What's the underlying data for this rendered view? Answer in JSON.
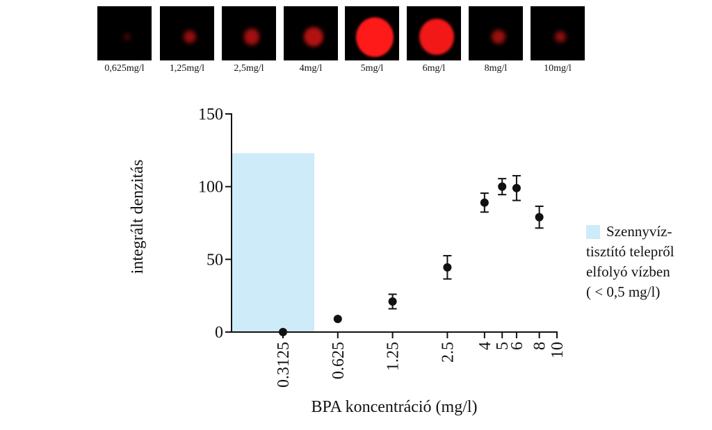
{
  "panels": [
    {
      "label": "0,625mg/l",
      "intensity": 0.05
    },
    {
      "label": "1,25mg/l",
      "intensity": 0.25
    },
    {
      "label": "2,5mg/l",
      "intensity": 0.35
    },
    {
      "label": "4mg/l",
      "intensity": 0.45
    },
    {
      "label": "5mg/l",
      "intensity": 1.0
    },
    {
      "label": "6mg/l",
      "intensity": 0.9
    },
    {
      "label": "8mg/l",
      "intensity": 0.3
    },
    {
      "label": "10mg/l",
      "intensity": 0.2
    }
  ],
  "colors": {
    "panel_background": "#000000",
    "panel_signal": "#ff1a1a",
    "shaded_region": "#cdebf8",
    "points": "#111111"
  },
  "chart_data": {
    "type": "scatter",
    "title": "",
    "xlabel": "BPA koncentráció (mg/l)",
    "ylabel": "integrált denzitás",
    "x_scale": "log",
    "x_ticks": [
      0.3125,
      0.625,
      1.25,
      2.5,
      4,
      5,
      6,
      8,
      10
    ],
    "x_tick_labels": [
      "0.3125",
      "0.625",
      "1.25",
      "2.5",
      "4",
      "5",
      "6",
      "8",
      "10"
    ],
    "ylim": [
      0,
      150
    ],
    "y_ticks": [
      0,
      50,
      100,
      150
    ],
    "y_tick_labels": [
      "0",
      "50",
      "100",
      "150"
    ],
    "grid": false,
    "points": [
      {
        "x": 0.3125,
        "y": 0,
        "err": 0
      },
      {
        "x": 0.625,
        "y": 9,
        "err": 0
      },
      {
        "x": 1.25,
        "y": 21,
        "err": 5
      },
      {
        "x": 2.5,
        "y": 44.5,
        "err": 8
      },
      {
        "x": 4,
        "y": 89,
        "err": 6.5
      },
      {
        "x": 5,
        "y": 100,
        "err": 5.5
      },
      {
        "x": 6,
        "y": 99,
        "err": 8.5
      },
      {
        "x": 8,
        "y": 79,
        "err": 7.5
      }
    ],
    "shaded_region": {
      "x_range_label": "< 0,5 mg/l",
      "y_top": 123
    },
    "legend": {
      "position": "right",
      "label_lines": [
        "Szennyvíz-",
        "tisztító telepről",
        "elfolyó vízben",
        "( < 0,5 mg/l)"
      ]
    }
  }
}
